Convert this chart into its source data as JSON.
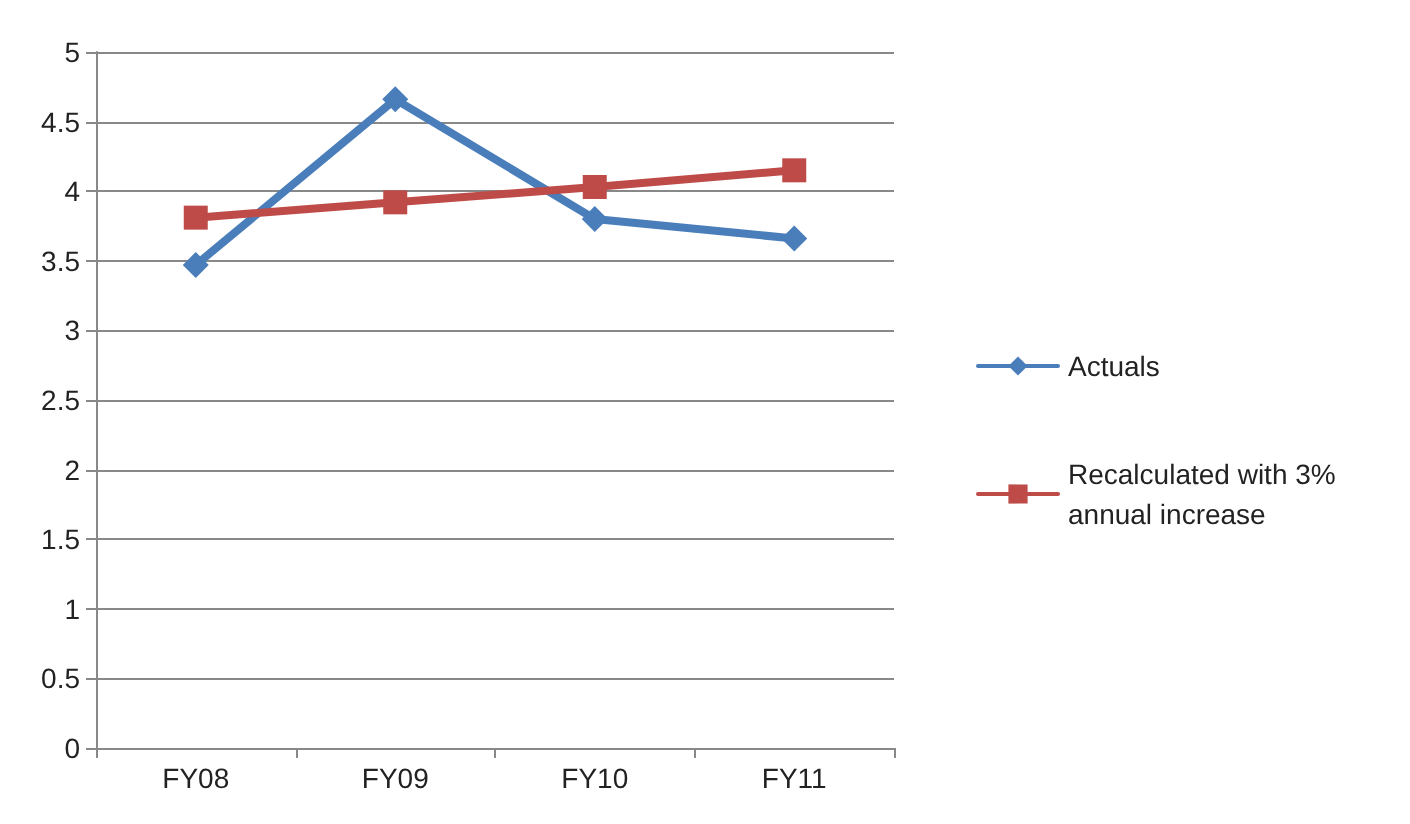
{
  "chart_data": {
    "type": "line",
    "categories": [
      "FY08",
      "FY09",
      "FY10",
      "FY11"
    ],
    "series": [
      {
        "name": "Actuals",
        "color": "#4a7ebb",
        "marker": "diamond",
        "values": [
          3.47,
          4.66,
          3.8,
          3.66
        ]
      },
      {
        "name": "Recalculated with 3% annual increase",
        "color": "#be4b48",
        "marker": "square",
        "values": [
          3.81,
          3.92,
          4.03,
          4.15
        ]
      }
    ],
    "ylim": [
      0,
      5
    ],
    "yticks": [
      0,
      0.5,
      1,
      1.5,
      2,
      2.5,
      3,
      3.5,
      4,
      4.5,
      5
    ],
    "grid": "y",
    "legend": "right"
  }
}
